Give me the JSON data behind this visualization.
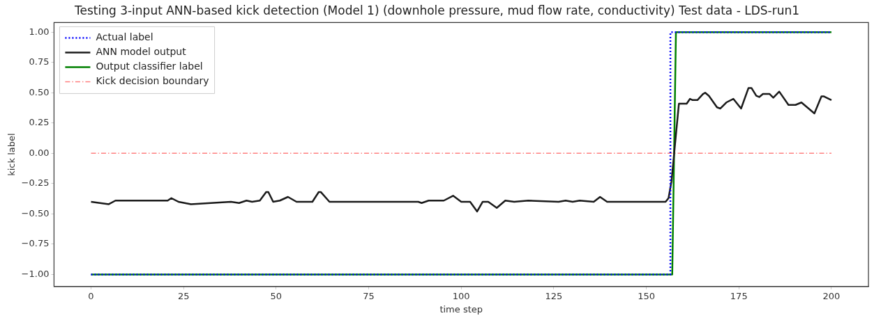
{
  "chart_data": {
    "type": "line",
    "title": "Testing 3-input ANN-based kick detection (Model 1) (downhole pressure, mud flow rate, conductivity) Test data - LDS-run1",
    "xlabel": "time step",
    "ylabel": "kick label",
    "xlim": [
      -10,
      210
    ],
    "xticks": [
      0,
      25,
      50,
      75,
      100,
      125,
      150,
      175,
      200
    ],
    "ylim": [
      -1.1,
      1.08
    ],
    "yticks": [
      {
        "value": -1,
        "label": "−1.00"
      },
      {
        "value": -0.75,
        "label": "−0.75"
      },
      {
        "value": -0.5,
        "label": "−0.50"
      },
      {
        "value": -0.25,
        "label": "−0.25"
      },
      {
        "value": 0,
        "label": "0.00"
      },
      {
        "value": 0.25,
        "label": "0.25"
      },
      {
        "value": 0.5,
        "label": "0.50"
      },
      {
        "value": 0.75,
        "label": "0.75"
      },
      {
        "value": 1,
        "label": "1.00"
      }
    ],
    "grid": false,
    "legend": "top left",
    "marker": "none",
    "series": [
      {
        "name": "Actual label",
        "color": "#0000ff",
        "line_style": "dotted",
        "x": [
          0,
          156.5,
          156.5,
          200
        ],
        "values": [
          -1,
          -1,
          1,
          1
        ]
      },
      {
        "name": "ANN model output",
        "color": "#1a1a1a",
        "line_style": "solid",
        "x": [
          0,
          4.8,
          6.6,
          20.7,
          21.7,
          23.6,
          27,
          37.8,
          40,
          42,
          43.5,
          45.6,
          47.3,
          47.9,
          49.2,
          51,
          53.2,
          55.5,
          59.8,
          61.5,
          62.1,
          64.4,
          78.3,
          88.4,
          89.3,
          91.2,
          95.3,
          97.8,
          100,
          102.4,
          104.3,
          105.8,
          107.3,
          109.6,
          111.9,
          114.3,
          118.1,
          126.3,
          128.2,
          130.1,
          132,
          135.8,
          137.5,
          139.4,
          155.2,
          156,
          156.8,
          158.8,
          160.9,
          161.8,
          162.5,
          163.8,
          165.3,
          165.9,
          166.9,
          169.1,
          170,
          171.6,
          173.5,
          175.6,
          177.6,
          178.4,
          179.7,
          180.5,
          181.5,
          183.3,
          184.3,
          185.9,
          188.4,
          190.3,
          191.9,
          195.4,
          197.3,
          198,
          200
        ],
        "values": [
          -0.4,
          -0.42,
          -0.39,
          -0.39,
          -0.37,
          -0.4,
          -0.42,
          -0.4,
          -0.41,
          -0.39,
          -0.4,
          -0.39,
          -0.32,
          -0.32,
          -0.4,
          -0.39,
          -0.36,
          -0.4,
          -0.4,
          -0.32,
          -0.32,
          -0.4,
          -0.4,
          -0.4,
          -0.41,
          -0.39,
          -0.39,
          -0.35,
          -0.4,
          -0.4,
          -0.48,
          -0.4,
          -0.4,
          -0.45,
          -0.39,
          -0.4,
          -0.39,
          -0.4,
          -0.39,
          -0.4,
          -0.39,
          -0.4,
          -0.36,
          -0.4,
          -0.4,
          -0.37,
          -0.23,
          0.41,
          0.41,
          0.45,
          0.44,
          0.44,
          0.49,
          0.5,
          0.475,
          0.38,
          0.37,
          0.42,
          0.45,
          0.37,
          0.54,
          0.54,
          0.475,
          0.465,
          0.49,
          0.49,
          0.46,
          0.51,
          0.4,
          0.4,
          0.42,
          0.33,
          0.47,
          0.47,
          0.44
        ]
      },
      {
        "name": "Output classifier label",
        "color": "#008000",
        "line_style": "solid",
        "x": [
          0,
          157,
          158,
          200
        ],
        "values": [
          -1,
          -1,
          1,
          1
        ]
      },
      {
        "name": "Kick decision boundary",
        "color": "#ff8080",
        "line_style": "dashed",
        "x": [
          0,
          200
        ],
        "values": [
          0,
          0
        ]
      }
    ]
  }
}
